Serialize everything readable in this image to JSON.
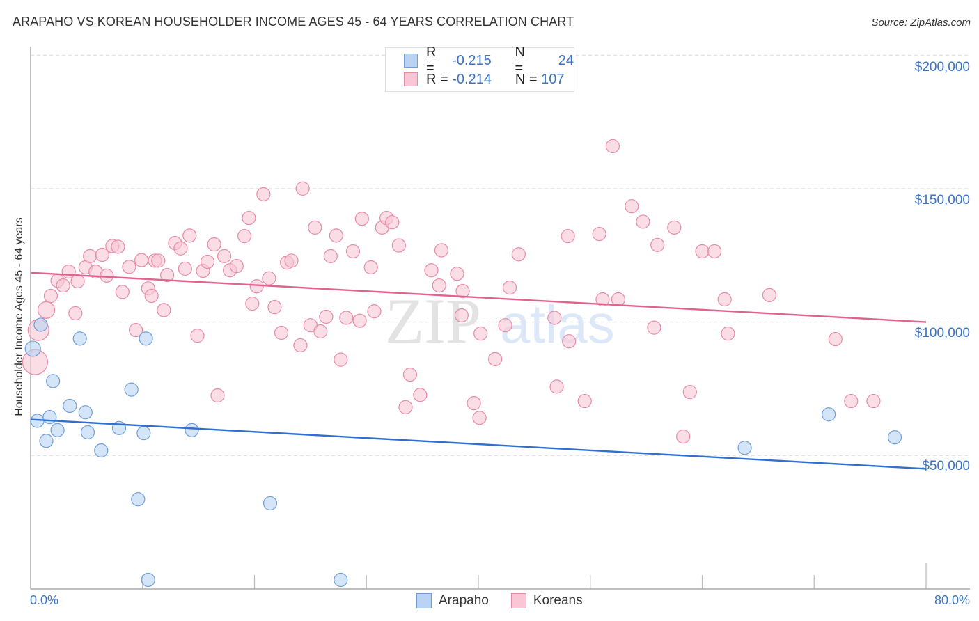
{
  "title": "ARAPAHO VS KOREAN HOUSEHOLDER INCOME AGES 45 - 64 YEARS CORRELATION CHART",
  "source": "Source: ZipAtlas.com",
  "watermark": {
    "zip": "ZIP",
    "atlas": "atlas"
  },
  "legend_stats": [
    {
      "series": "Arapaho",
      "r_label": "R =",
      "r_value": "-0.215",
      "n_label": "N =",
      "n_value": "24"
    },
    {
      "series": "Koreans",
      "r_label": "R =",
      "r_value": "-0.214",
      "n_label": "N =",
      "n_value": "107"
    }
  ],
  "bottom_legend": [
    {
      "label": "Arapaho"
    },
    {
      "label": "Koreans"
    }
  ],
  "colors": {
    "arapaho_fill": "#b8d3f3",
    "arapaho_stroke": "#6f9ed8",
    "arapaho_line": "#2f6fd0",
    "koreans_fill": "#f8c6d5",
    "koreans_stroke": "#e88aa8",
    "koreans_line": "#e0628e",
    "axis_text": "#3a74c9"
  },
  "chart_data": {
    "type": "scatter",
    "title": "ARAPAHO VS KOREAN HOUSEHOLDER INCOME AGES 45 - 64 YEARS CORRELATION CHART",
    "xlabel": "",
    "ylabel": "Householder Income Ages 45 - 64 years",
    "xlim": [
      0,
      80
    ],
    "ylim": [
      0,
      210000
    ],
    "x_tick_labels": [
      "0.0%",
      "80.0%"
    ],
    "y_tick_labels": [
      "$50,000",
      "$100,000",
      "$150,000",
      "$200,000"
    ],
    "y_ticks": [
      50000,
      100000,
      150000,
      200000
    ],
    "grid": true,
    "legend_position": "top-center",
    "series": [
      {
        "name": "Arapaho",
        "r": -0.215,
        "n": 24,
        "trend": {
          "x": [
            0,
            80
          ],
          "y": [
            63500,
            45000
          ]
        },
        "points": [
          [
            0.2,
            90000
          ],
          [
            0.9,
            99000
          ],
          [
            0.6,
            63000
          ],
          [
            1.4,
            55500
          ],
          [
            1.7,
            64400
          ],
          [
            2.0,
            77900
          ],
          [
            2.4,
            59500
          ],
          [
            3.5,
            68600
          ],
          [
            4.4,
            93800
          ],
          [
            4.9,
            66200
          ],
          [
            5.1,
            58700
          ],
          [
            6.3,
            51900
          ],
          [
            7.9,
            60300
          ],
          [
            9.0,
            74700
          ],
          [
            9.6,
            33600
          ],
          [
            10.1,
            58400
          ],
          [
            10.3,
            93800
          ],
          [
            10.5,
            3400
          ],
          [
            14.4,
            59500
          ],
          [
            21.4,
            32100
          ],
          [
            27.7,
            3400
          ],
          [
            63.8,
            52900
          ],
          [
            71.3,
            65400
          ],
          [
            77.2,
            56800
          ]
        ]
      },
      {
        "name": "Koreans",
        "r": -0.214,
        "n": 107,
        "trend": {
          "x": [
            0,
            80
          ],
          "y": [
            118500,
            100000
          ]
        },
        "points": [
          [
            0.4,
            85000
          ],
          [
            0.7,
            97000
          ],
          [
            1.4,
            104500
          ],
          [
            1.8,
            109800
          ],
          [
            2.4,
            115500
          ],
          [
            2.9,
            113700
          ],
          [
            3.4,
            118900
          ],
          [
            4.0,
            103300
          ],
          [
            4.2,
            115300
          ],
          [
            4.9,
            120500
          ],
          [
            5.3,
            124700
          ],
          [
            5.8,
            118900
          ],
          [
            6.4,
            125200
          ],
          [
            6.8,
            117400
          ],
          [
            7.3,
            128500
          ],
          [
            7.8,
            128200
          ],
          [
            8.2,
            111300
          ],
          [
            8.8,
            120700
          ],
          [
            9.4,
            97000
          ],
          [
            9.9,
            123200
          ],
          [
            10.5,
            112600
          ],
          [
            10.8,
            109800
          ],
          [
            11.1,
            123000
          ],
          [
            11.4,
            123000
          ],
          [
            11.9,
            104500
          ],
          [
            12.2,
            117600
          ],
          [
            12.9,
            129600
          ],
          [
            13.4,
            127600
          ],
          [
            13.8,
            120000
          ],
          [
            14.2,
            132400
          ],
          [
            14.9,
            94900
          ],
          [
            15.4,
            119200
          ],
          [
            15.8,
            122600
          ],
          [
            16.4,
            129100
          ],
          [
            16.7,
            72500
          ],
          [
            17.3,
            124700
          ],
          [
            17.8,
            119400
          ],
          [
            18.4,
            121000
          ],
          [
            19.1,
            132200
          ],
          [
            19.5,
            139000
          ],
          [
            19.8,
            106900
          ],
          [
            20.2,
            113400
          ],
          [
            20.8,
            147900
          ],
          [
            21.3,
            116400
          ],
          [
            21.8,
            105600
          ],
          [
            22.4,
            96000
          ],
          [
            22.9,
            122300
          ],
          [
            23.3,
            123000
          ],
          [
            24.1,
            91300
          ],
          [
            24.3,
            150000
          ],
          [
            25.0,
            98800
          ],
          [
            25.4,
            135400
          ],
          [
            25.9,
            96500
          ],
          [
            26.4,
            102000
          ],
          [
            26.8,
            124700
          ],
          [
            27.3,
            132400
          ],
          [
            27.7,
            85900
          ],
          [
            28.2,
            101600
          ],
          [
            28.8,
            126500
          ],
          [
            29.4,
            100500
          ],
          [
            29.6,
            138700
          ],
          [
            30.4,
            120500
          ],
          [
            30.7,
            104000
          ],
          [
            31.4,
            135400
          ],
          [
            31.8,
            139000
          ],
          [
            32.3,
            137400
          ],
          [
            32.9,
            128700
          ],
          [
            33.5,
            68100
          ],
          [
            33.9,
            80300
          ],
          [
            34.8,
            72700
          ],
          [
            35.8,
            119400
          ],
          [
            36.5,
            113700
          ],
          [
            36.7,
            126900
          ],
          [
            38.1,
            118100
          ],
          [
            38.5,
            102500
          ],
          [
            38.6,
            111600
          ],
          [
            39.6,
            69600
          ],
          [
            40.1,
            64100
          ],
          [
            40.2,
            95700
          ],
          [
            41.5,
            86100
          ],
          [
            42.4,
            98800
          ],
          [
            42.8,
            112900
          ],
          [
            43.6,
            125400
          ],
          [
            46.8,
            101600
          ],
          [
            47.0,
            75800
          ],
          [
            48.0,
            132200
          ],
          [
            48.1,
            92800
          ],
          [
            49.5,
            70400
          ],
          [
            50.8,
            133000
          ],
          [
            51.1,
            108500
          ],
          [
            52.0,
            165900
          ],
          [
            52.5,
            108500
          ],
          [
            53.7,
            143400
          ],
          [
            54.7,
            137600
          ],
          [
            55.7,
            97900
          ],
          [
            56.0,
            128900
          ],
          [
            57.5,
            135400
          ],
          [
            58.3,
            57100
          ],
          [
            58.9,
            73800
          ],
          [
            60.0,
            126500
          ],
          [
            61.1,
            126500
          ],
          [
            62.0,
            108500
          ],
          [
            62.3,
            95700
          ],
          [
            66.0,
            110100
          ],
          [
            71.9,
            93600
          ],
          [
            73.3,
            70400
          ],
          [
            75.3,
            70400
          ]
        ]
      }
    ]
  }
}
